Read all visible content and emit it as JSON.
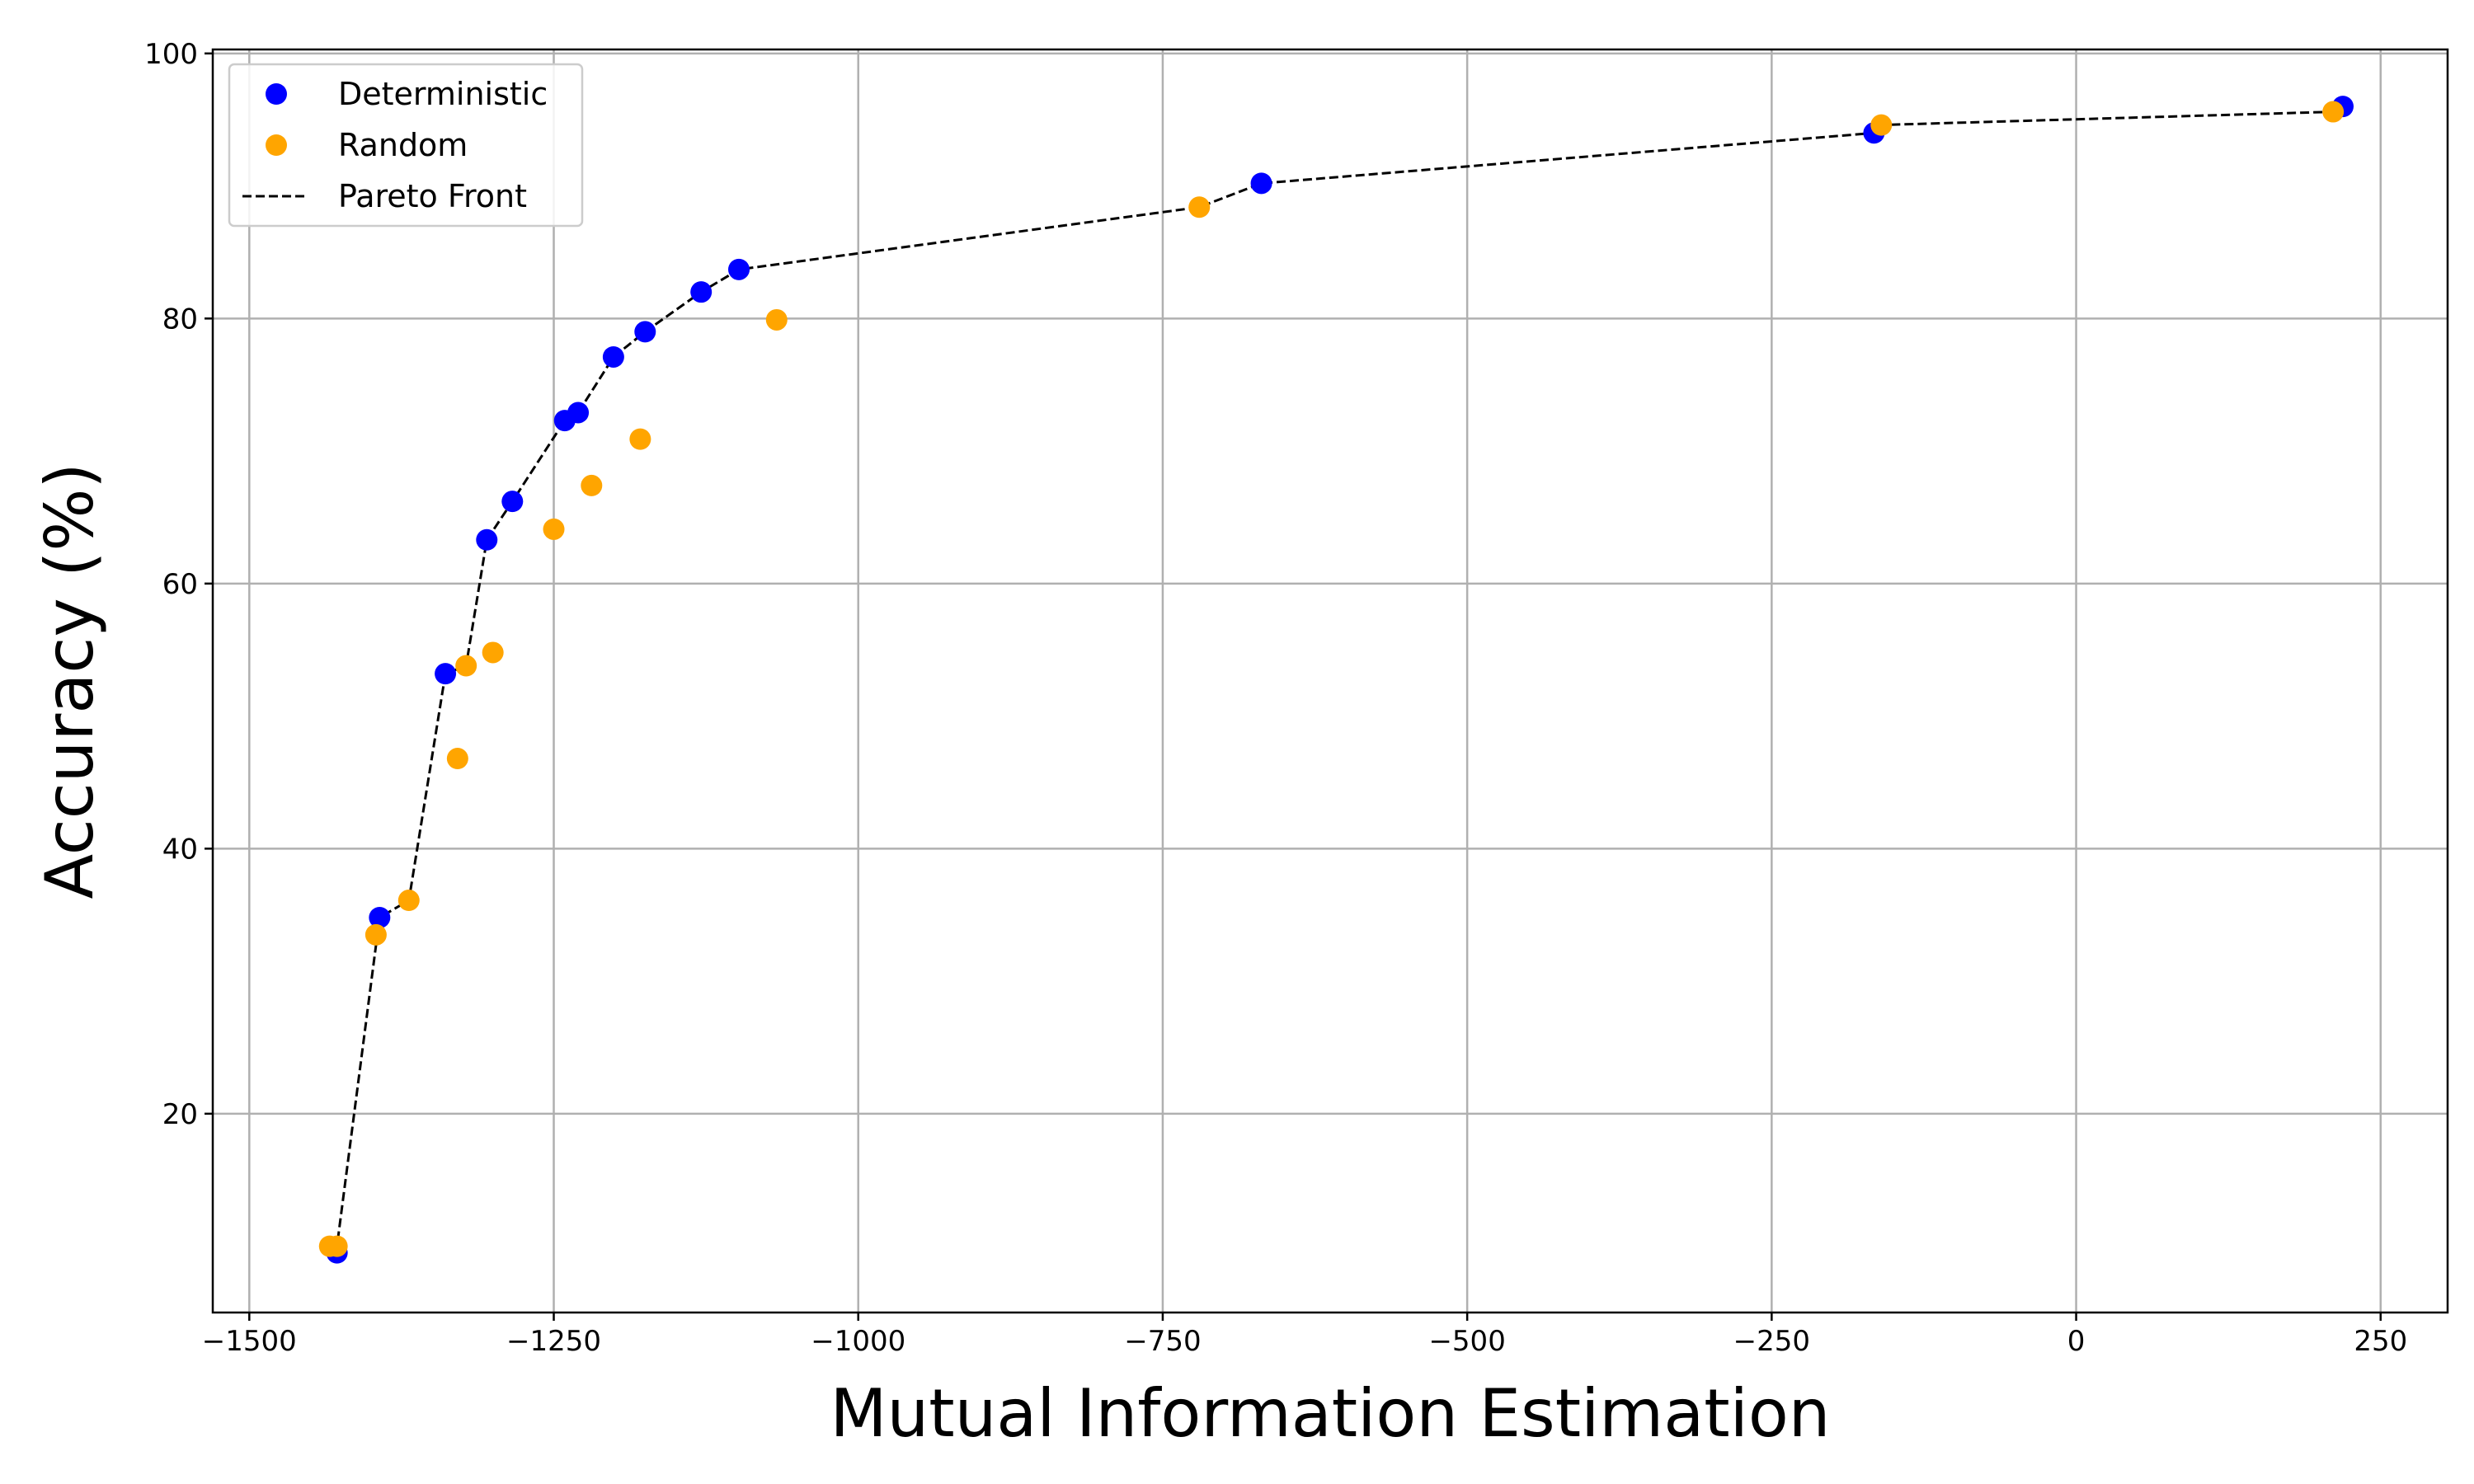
{
  "chart_data": {
    "type": "scatter",
    "title": "",
    "xlabel": "Mutual Information Estimation",
    "ylabel": "Accuracy (%)",
    "xlim": [
      -1530,
      305
    ],
    "ylim": [
      5,
      100.3
    ],
    "xticks": [
      -1500,
      -1250,
      -1000,
      -750,
      -500,
      -250,
      0,
      250
    ],
    "xtick_labels": [
      "−1500",
      "−1250",
      "−1000",
      "−750",
      "−500",
      "−250",
      "0",
      "250"
    ],
    "yticks": [
      20,
      40,
      60,
      80,
      100
    ],
    "ytick_labels": [
      "20",
      "40",
      "60",
      "80",
      "100"
    ],
    "grid": true,
    "legend_position": "top-left",
    "series": [
      {
        "name": "Deterministic",
        "kind": "scatter",
        "color": "#0000ff",
        "x": [
          -1428,
          -1393,
          -1339,
          -1305,
          -1284,
          -1241,
          -1230,
          -1201,
          -1175,
          -1129,
          -1098,
          -669,
          -166,
          219
        ],
        "y": [
          9.5,
          34.8,
          53.2,
          63.3,
          66.2,
          72.3,
          72.9,
          77.1,
          79.0,
          82.0,
          83.7,
          90.2,
          94.0,
          96.0
        ]
      },
      {
        "name": "Random",
        "kind": "scatter",
        "color": "#ffa500",
        "x": [
          -1434,
          -1428,
          -1396,
          -1369,
          -1329,
          -1322,
          -1300,
          -1250,
          -1219,
          -1179,
          -1067,
          -720,
          -160,
          211
        ],
        "y": [
          10.0,
          10.0,
          33.5,
          36.1,
          46.8,
          53.8,
          54.8,
          64.1,
          67.4,
          70.9,
          79.9,
          88.4,
          94.6,
          95.6
        ]
      },
      {
        "name": "Pareto Front",
        "kind": "line",
        "style": "dashed",
        "color": "#000000",
        "x": [
          -1434,
          -1428,
          -1393,
          -1369,
          -1339,
          -1322,
          -1305,
          -1284,
          -1241,
          -1230,
          -1201,
          -1175,
          -1129,
          -1098,
          -720,
          -669,
          -166,
          -160,
          211
        ],
        "y": [
          10.0,
          10.0,
          34.8,
          36.1,
          53.2,
          53.8,
          63.3,
          66.2,
          72.3,
          72.9,
          77.1,
          79.0,
          82.0,
          83.7,
          88.4,
          90.2,
          94.0,
          94.6,
          95.6
        ]
      }
    ]
  }
}
